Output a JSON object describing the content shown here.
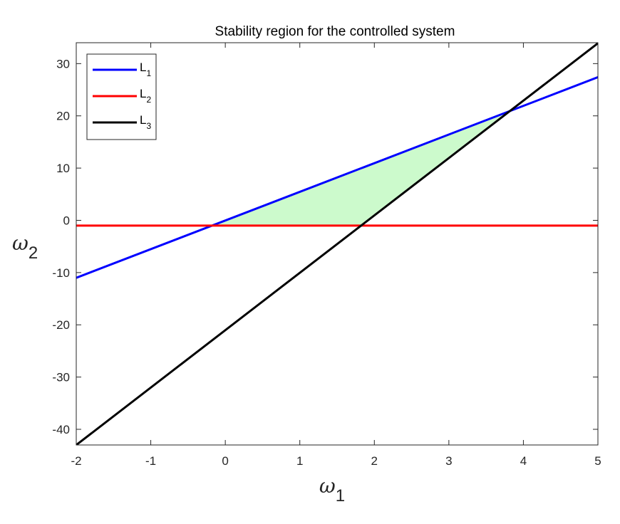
{
  "chart_data": {
    "type": "line",
    "title": "Stability region for the controlled system",
    "xlabel": {
      "symbol": "ω",
      "sub": "1"
    },
    "ylabel": {
      "symbol": "ω",
      "sub": "2"
    },
    "xlim": [
      -2,
      5
    ],
    "ylim": [
      -43,
      34
    ],
    "xticks": [
      -2,
      -1,
      0,
      1,
      2,
      3,
      4,
      5
    ],
    "yticks": [
      -40,
      -30,
      -20,
      -10,
      0,
      10,
      20,
      30
    ],
    "grid": false,
    "legend_position": "top-left",
    "series": [
      {
        "name": "L",
        "sub": "1",
        "color": "#0000ff",
        "x": [
          -2,
          5
        ],
        "y": [
          -11,
          27.4
        ]
      },
      {
        "name": "L",
        "sub": "2",
        "color": "#ff0000",
        "x": [
          -2,
          5
        ],
        "y": [
          -1,
          -1
        ]
      },
      {
        "name": "L",
        "sub": "3",
        "color": "#000000",
        "x": [
          -2,
          5
        ],
        "y": [
          -43,
          33.9
        ]
      }
    ],
    "region": {
      "color": "#ccfacc",
      "x": [
        -0.18,
        1.8,
        3.8
      ],
      "y": [
        -1,
        -1,
        21
      ]
    }
  }
}
